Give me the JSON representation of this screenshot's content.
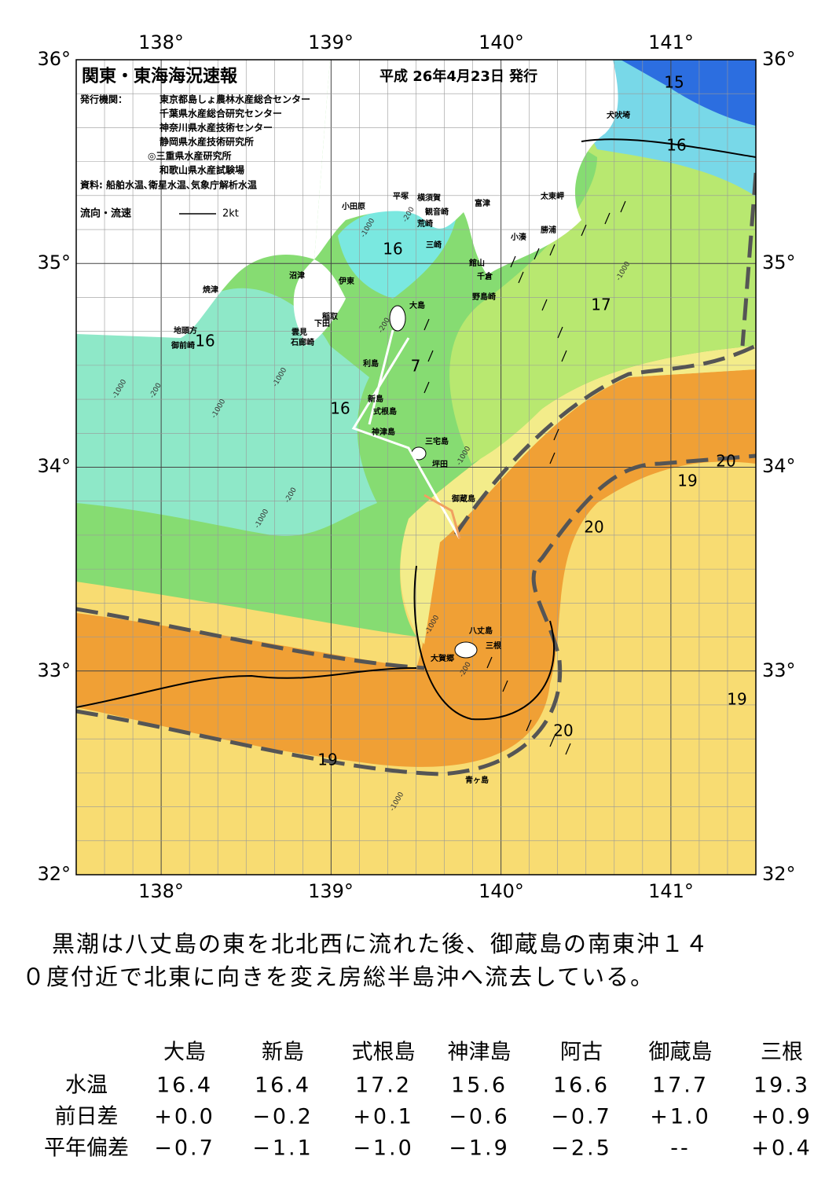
{
  "header": {
    "title": "関東・東海海況速報",
    "date": "平成 26年4月23日 発行",
    "publisher_label": "発行機関：",
    "publishers": [
      "東京都島しょ農林水産総合センター",
      "千葉県水産総合研究センター",
      "神奈川県水産技術センター",
      "静岡県水産技術研究所",
      "◎三重県水産研究所",
      "和歌山県水産試験場"
    ],
    "source": "資料: 船舶水温､衛星水温､気象庁解析水温",
    "legend_label": "流向・流速",
    "legend_scale": "2kt"
  },
  "axes": {
    "top": [
      "138°",
      "139°",
      "140°",
      "141°"
    ],
    "bottom": [
      "138°",
      "139°",
      "140°",
      "141°"
    ],
    "left": [
      "36°",
      "35°",
      "34°",
      "33°",
      "32°"
    ],
    "right": [
      "36°",
      "35°",
      "34°",
      "33°",
      "32°"
    ]
  },
  "place_names": [
    "犬吠埼",
    "太東岬",
    "勝浦",
    "小湊",
    "富津",
    "館山",
    "千倉",
    "野島崎",
    "横須賀",
    "観音崎",
    "荒崎",
    "三崎",
    "平塚",
    "小田原",
    "沼津",
    "伊東",
    "焼津",
    "稲取",
    "下田",
    "雲見",
    "石廊崎",
    "地頭方",
    "御前崎",
    "大島",
    "利島",
    "新島",
    "式根島",
    "神津島",
    "三宅島",
    "坪田",
    "御蔵島",
    "八丈島",
    "三根",
    "大賀郷",
    "青ヶ島"
  ],
  "contour_labels": [
    "15",
    "16",
    "16",
    "16",
    "16",
    "17",
    "7",
    "20",
    "19",
    "20",
    "19",
    "20",
    "19"
  ],
  "depth_labels": [
    "-200",
    "-1000",
    "-1000",
    "-200",
    "-1000",
    "-200",
    "-1000",
    "-1000",
    "-200",
    "-1000",
    "-1000",
    "-1000",
    "-200",
    "-1000"
  ],
  "summary": [
    "黒潮は八丈島の東を北北西に流れた後、御蔵島の南東沖１４",
    "０度付近で北東に向きを変え房総半島沖へ流去している。"
  ],
  "table": {
    "columns": [
      "大島",
      "新島",
      "式根島",
      "神津島",
      "阿古",
      "御蔵島",
      "三根"
    ],
    "rows": [
      {
        "label": "水温",
        "values": [
          "16.4",
          "16.4",
          "17.2",
          "15.6",
          "16.6",
          "17.7",
          "19.3"
        ]
      },
      {
        "label": "前日差",
        "values": [
          "+0.0",
          "−0.2",
          "+0.1",
          "−0.6",
          "−0.7",
          "+1.0",
          "+0.9"
        ]
      },
      {
        "label": "平年偏差",
        "values": [
          "−0.7",
          "−1.1",
          "−1.0",
          "−1.9",
          "−2.5",
          "--",
          "+0.4"
        ]
      }
    ]
  }
}
